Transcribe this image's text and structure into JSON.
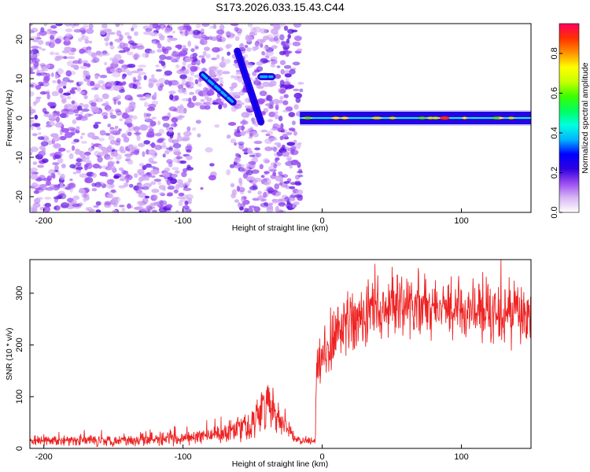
{
  "figure_title": "S173.2026.033.15.43.C44",
  "chart_data": [
    {
      "type": "heatmap",
      "title": "S173.2026.033.15.43.C44",
      "xlabel": "Height of straight line (km)",
      "ylabel": "Frequency (Hz)",
      "xlim": [
        -210,
        150
      ],
      "ylim": [
        -24,
        24
      ],
      "xticks": [
        -200,
        -100,
        0,
        100
      ],
      "yticks": [
        -20,
        -10,
        0,
        10,
        20
      ],
      "grid": false,
      "colorbar": {
        "label": "Normalized spectral amplitude",
        "range": [
          0.0,
          0.95
        ],
        "ticks": [
          0.0,
          0.2,
          0.4,
          0.6,
          0.8
        ],
        "colormap": [
          "#ffffff",
          "#d8b8f4",
          "#9a4cf0",
          "#2f00e0",
          "#0000ff",
          "#00b4ff",
          "#00ffe0",
          "#00ff60",
          "#3cff00",
          "#c8ff00",
          "#ffff00",
          "#ff9000",
          "#ff3000",
          "#ff0060"
        ]
      },
      "regions": [
        {
          "name": "noise",
          "x_range": [
            -210,
            -15
          ],
          "y_range": [
            -24,
            24
          ],
          "amplitude": 0.08
        },
        {
          "name": "gap",
          "x_range": [
            -95,
            -65
          ],
          "y_range": [
            -24,
            2
          ],
          "amplitude": 0.02
        },
        {
          "name": "streak-1",
          "x_start": -86,
          "y_start": 11,
          "x_end": -64,
          "y_end": 4,
          "amplitude": 0.35
        },
        {
          "name": "streak-2",
          "x_start": -61,
          "y_start": 17,
          "x_end": -44,
          "y_end": -1,
          "amplitude": 0.3
        },
        {
          "name": "streak-3",
          "x_start": -44,
          "y_start": 10.5,
          "x_end": -36,
          "y_end": 10.5,
          "amplitude": 0.35
        },
        {
          "name": "carrier",
          "x_range": [
            -16,
            150
          ],
          "y_center": 0,
          "half_width": 1.6,
          "amplitude": 0.45,
          "peak_x": 88,
          "peak_amplitude": 0.9
        }
      ]
    },
    {
      "type": "line",
      "xlabel": "Height of straight line (km)",
      "ylabel": "SNR (10 * v/v)",
      "xlim": [
        -210,
        150
      ],
      "ylim": [
        0,
        365
      ],
      "xticks": [
        -200,
        -100,
        0,
        100
      ],
      "yticks": [
        0,
        100,
        200,
        300
      ],
      "grid": false,
      "series": [
        {
          "name": "SNR",
          "color": "#ee2222",
          "envelope_x": [
            -210,
            -150,
            -100,
            -80,
            -70,
            -60,
            -50,
            -45,
            -40,
            -35,
            -30,
            -25,
            -20,
            -15,
            -10,
            -5,
            -4,
            -2,
            0,
            5,
            10,
            20,
            30,
            40,
            60,
            80,
            100,
            120,
            140,
            150
          ],
          "envelope_mean": [
            15,
            16,
            18,
            25,
            32,
            38,
            50,
            70,
            85,
            70,
            55,
            40,
            20,
            15,
            14,
            14,
            150,
            170,
            175,
            200,
            220,
            245,
            260,
            265,
            275,
            270,
            268,
            262,
            258,
            255
          ],
          "envelope_spread": [
            8,
            10,
            12,
            15,
            18,
            22,
            30,
            40,
            55,
            35,
            25,
            15,
            8,
            6,
            6,
            6,
            35,
            40,
            45,
            50,
            55,
            55,
            55,
            55,
            50,
            50,
            50,
            50,
            50,
            50
          ]
        }
      ]
    }
  ]
}
